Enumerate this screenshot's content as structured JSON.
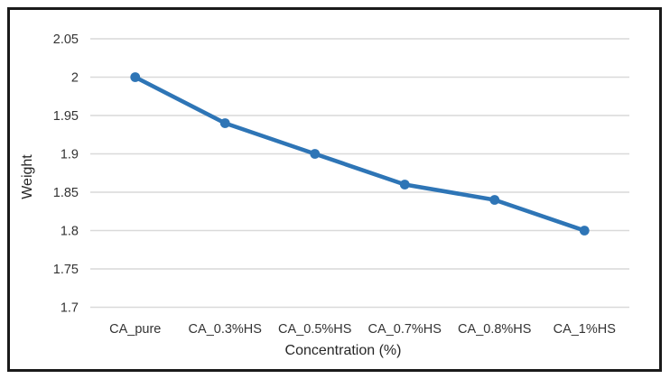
{
  "chart_data": {
    "type": "line",
    "title": "",
    "xlabel": "Concentration (%)",
    "ylabel": "Weight",
    "categories": [
      "CA_pure",
      "CA_0.3%HS",
      "CA_0.5%HS",
      "CA_0.7%HS",
      "CA_0.8%HS",
      "CA_1%HS"
    ],
    "series": [
      {
        "name": "Weight",
        "values": [
          2.0,
          1.94,
          1.9,
          1.86,
          1.84,
          1.8
        ]
      }
    ],
    "ylim": [
      1.7,
      2.05
    ],
    "yticks": [
      1.7,
      1.75,
      1.8,
      1.85,
      1.9,
      1.95,
      2,
      2.05
    ],
    "ytick_labels": [
      "1.7",
      "1.75",
      "1.8",
      "1.85",
      "1.9",
      "1.95",
      "2",
      "2.05"
    ],
    "grid": true,
    "legend_position": "none",
    "line_color": "#2e75b6",
    "marker": "circle",
    "gridline_color": "#d9d9d9",
    "tick_text_color": "#333333",
    "frame_border_color": "#1a1a1a"
  }
}
